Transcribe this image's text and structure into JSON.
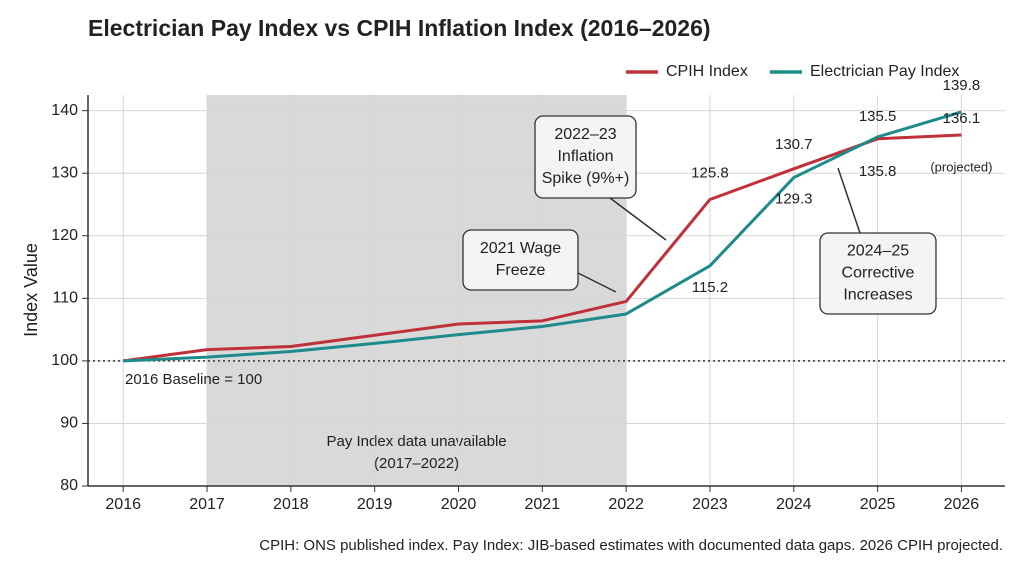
{
  "chart_data": {
    "type": "line",
    "title": "Electrician Pay Index vs CPIH Inflation Index (2016–2026)",
    "y_label": "Index Value",
    "x": [
      2016,
      2017,
      2018,
      2019,
      2020,
      2021,
      2022,
      2023,
      2024,
      2025,
      2026
    ],
    "series": [
      {
        "name": "CPIH Index",
        "color": "#c0303a",
        "values": [
          100,
          101.8,
          102.3,
          104.1,
          105.9,
          106.4,
          109.5,
          125.8,
          130.7,
          135.5,
          136.1
        ],
        "value_labels": [
          null,
          null,
          null,
          null,
          null,
          null,
          null,
          "125.8",
          "130.7",
          "135.5",
          "136.1"
        ]
      },
      {
        "name": "Electrician Pay Index",
        "color": "#1f8a8a",
        "values": [
          100,
          100.6,
          101.5,
          102.8,
          104.2,
          105.5,
          107.5,
          115.2,
          129.3,
          135.8,
          139.8
        ],
        "value_labels": [
          null,
          null,
          null,
          null,
          null,
          null,
          null,
          "115.2",
          "129.3",
          "135.8",
          "139.8"
        ]
      }
    ],
    "xlim": [
      2015.58,
      2026.52
    ],
    "xticks": [
      2016,
      2017,
      2018,
      2019,
      2020,
      2021,
      2022,
      2023,
      2024,
      2025,
      2026
    ],
    "ylim": [
      80,
      142.5
    ],
    "yticks": [
      80,
      90,
      100,
      110,
      120,
      130,
      140
    ],
    "grid": true,
    "legend": "top-right",
    "baseline": 100,
    "baseline_label": "2016 Baseline = 100",
    "shaded_range": [
      2017,
      2022
    ],
    "shaded_label": [
      "Pay Index data unavailable",
      "(2017–2022)"
    ],
    "projected_label": "(projected)",
    "annotations": [
      [
        "2022–23",
        "Inflation",
        "Spike (9%+)"
      ],
      [
        "2021 Wage",
        "Freeze"
      ],
      [
        "2024–25",
        "Corrective",
        "Increases"
      ]
    ],
    "footnote": "CPIH: ONS published index. Pay Index: JIB-based estimates with documented data gaps. 2026 CPIH projected."
  }
}
